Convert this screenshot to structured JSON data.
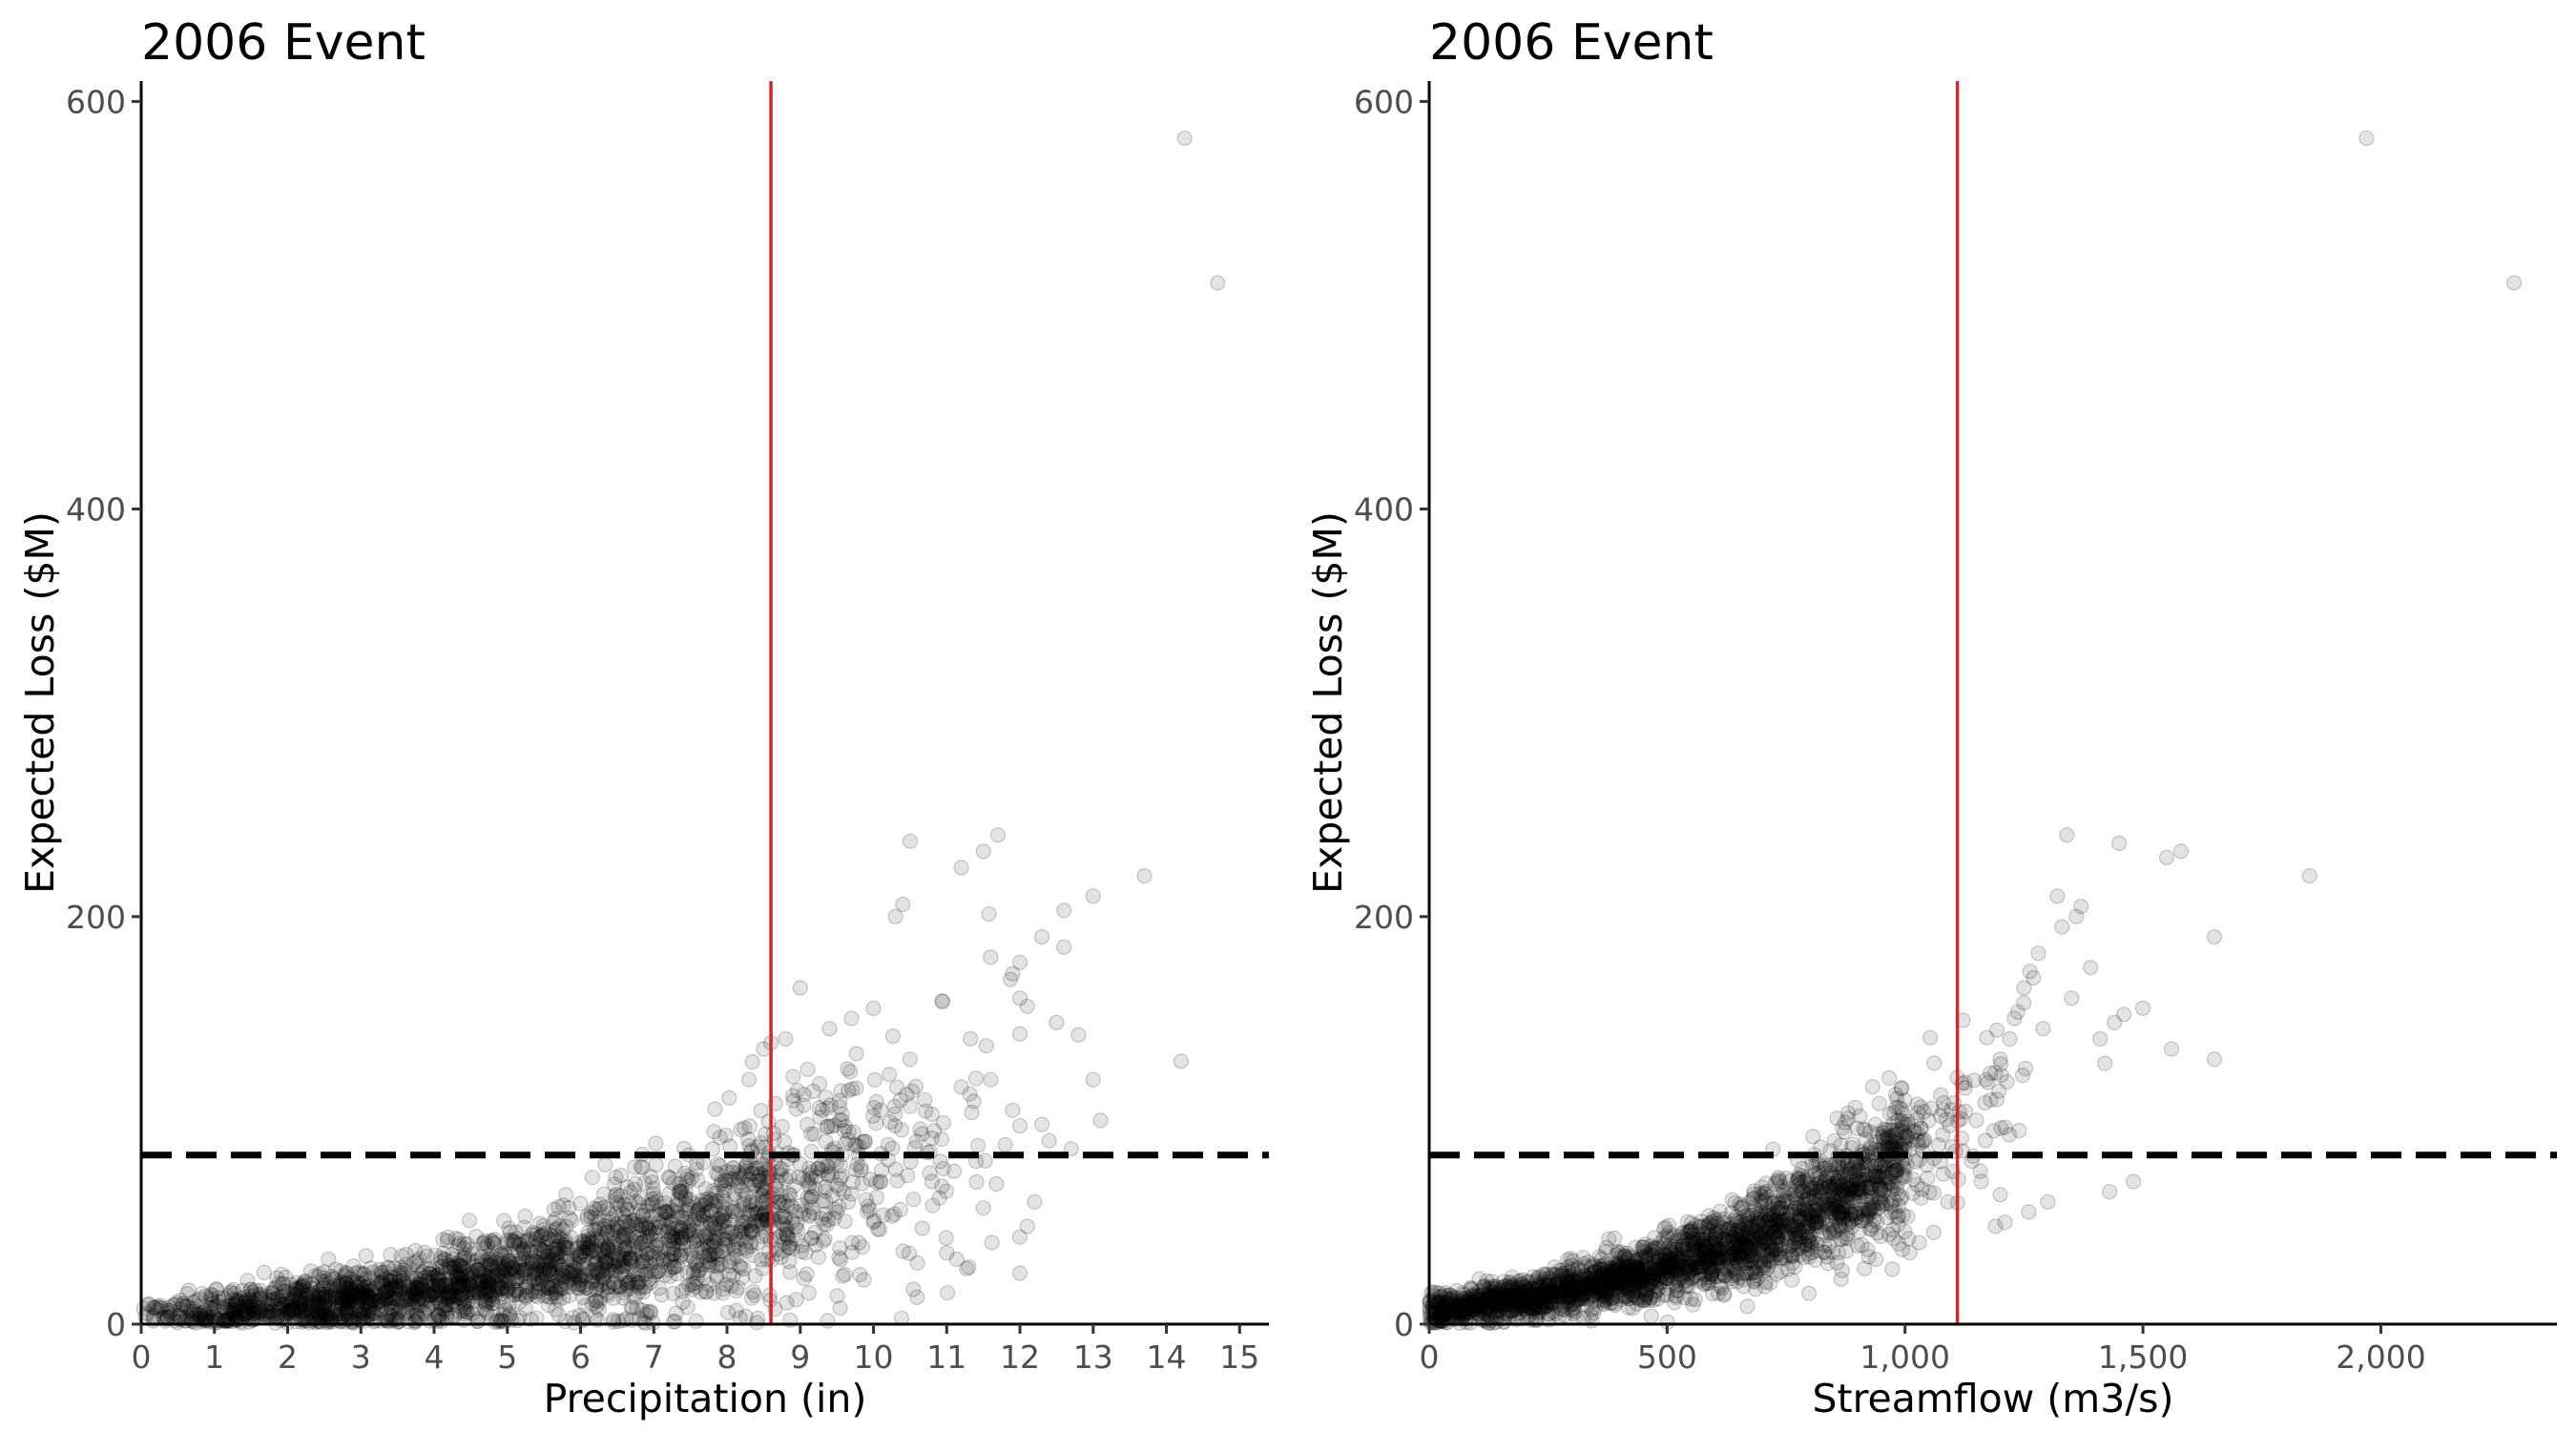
{
  "chart_data": [
    {
      "type": "scatter",
      "title": "2006 Event",
      "xlabel": "Precipitation (in)",
      "ylabel": "Expected Loss ($M)",
      "xlim": [
        0,
        15.4
      ],
      "ylim": [
        0,
        610
      ],
      "x_ticks": [
        0,
        1,
        2,
        3,
        4,
        5,
        6,
        7,
        8,
        9,
        10,
        11,
        12,
        13,
        14,
        15
      ],
      "x_tick_labels": [
        "0",
        "1",
        "2",
        "3",
        "4",
        "5",
        "6",
        "7",
        "8",
        "9",
        "10",
        "11",
        "12",
        "13",
        "14",
        "15"
      ],
      "y_ticks": [
        0,
        200,
        400,
        600
      ],
      "y_tick_labels": [
        "0",
        "200",
        "400",
        "600"
      ],
      "vline_x": 8.6,
      "hline_y": 83,
      "vline_color": "#d62728",
      "grid": false,
      "legend": "none",
      "points": {
        "x": [
          14.25,
          14.7,
          13.7,
          14.2,
          11.7,
          11.5,
          10.5,
          11.2,
          13.0,
          12.6,
          10.4,
          10.3,
          12.3,
          12.6,
          11.6,
          11.9,
          12.1,
          12.5,
          12.8,
          13.0,
          13.1,
          12.3,
          12.4,
          12.7,
          11.8,
          11.4,
          10.8,
          10.9,
          9.9,
          9.5,
          10.0,
          9.2,
          9.8,
          10.6,
          11.0,
          11.3,
          12.0,
          12.2,
          11.1,
          10.7,
          9.0,
          8.8,
          8.6,
          8.5,
          8.3,
          8.9,
          9.3,
          9.6,
          10.2,
          10.1,
          11.5,
          12.1,
          11.6,
          11.9,
          10.0,
          9.7,
          9.4,
          10.5,
          9.1,
          8.7
        ],
        "y": [
          582,
          511,
          220,
          129,
          240,
          232,
          237,
          224,
          210,
          203,
          206,
          200,
          190,
          185,
          180,
          172,
          156,
          148,
          142,
          120,
          100,
          98,
          90,
          86,
          88,
          80,
          70,
          62,
          61,
          55,
          50,
          45,
          40,
          30,
          35,
          28,
          25,
          60,
          75,
          110,
          165,
          140,
          138,
          135,
          120,
          112,
          105,
          95,
          88,
          70,
          57,
          48,
          120,
          105,
          155,
          150,
          145,
          130,
          125,
          60
        ]
      },
      "dense_trend": {
        "x": [
          0,
          1,
          2,
          3,
          4,
          5,
          6,
          7,
          8,
          9,
          10,
          11,
          12
        ],
        "y": [
          4,
          6,
          9,
          13,
          18,
          24,
          31,
          40,
          50,
          62,
          78,
          95,
          115
        ]
      }
    },
    {
      "type": "scatter",
      "title": "2006 Event",
      "xlabel": "Streamflow (m3/s)",
      "ylabel": "Expected Loss ($M)",
      "xlim": [
        0,
        2370
      ],
      "ylim": [
        0,
        610
      ],
      "x_ticks": [
        0,
        500,
        1000,
        1500,
        2000
      ],
      "x_tick_labels": [
        "0",
        "500",
        "1,000",
        "1,500",
        "2,000"
      ],
      "y_ticks": [
        0,
        200,
        400,
        600
      ],
      "y_tick_labels": [
        "0",
        "200",
        "400",
        "600"
      ],
      "vline_x": 1110,
      "hline_y": 83,
      "vline_color": "#d62728",
      "grid": false,
      "legend": "none",
      "points": {
        "x": [
          1970,
          2280,
          1850,
          1580,
          1550,
          1450,
          1340,
          1320,
          1650,
          1650,
          1560,
          1460,
          1440,
          1410,
          1420,
          1390,
          1370,
          1360,
          1330,
          1280,
          1270,
          1250,
          1230,
          1220,
          1200,
          1180,
          1170,
          1150,
          1120,
          1100,
          1090,
          1060,
          1030,
          1010,
          1500,
          1480,
          1430,
          1300,
          1260,
          1210,
          1190,
          1240,
          1160,
          1140,
          1080,
          1050,
          1000,
          980,
          1350,
          1290
        ],
        "y": [
          582,
          511,
          220,
          232,
          229,
          236,
          240,
          210,
          190,
          130,
          135,
          152,
          148,
          140,
          128,
          175,
          205,
          200,
          195,
          182,
          170,
          165,
          150,
          140,
          130,
          110,
          120,
          100,
          85,
          75,
          60,
          45,
          40,
          35,
          155,
          70,
          65,
          60,
          55,
          50,
          48,
          95,
          70,
          80,
          105,
          100,
          92,
          85,
          160,
          145
        ]
      },
      "dense_trend": {
        "x": [
          0,
          100,
          200,
          300,
          400,
          500,
          600,
          700,
          800,
          900,
          1000,
          1100,
          1200,
          1300
        ],
        "y": [
          6,
          9,
          13,
          17,
          22,
          28,
          35,
          44,
          55,
          68,
          82,
          98,
          118,
          140
        ]
      }
    }
  ]
}
